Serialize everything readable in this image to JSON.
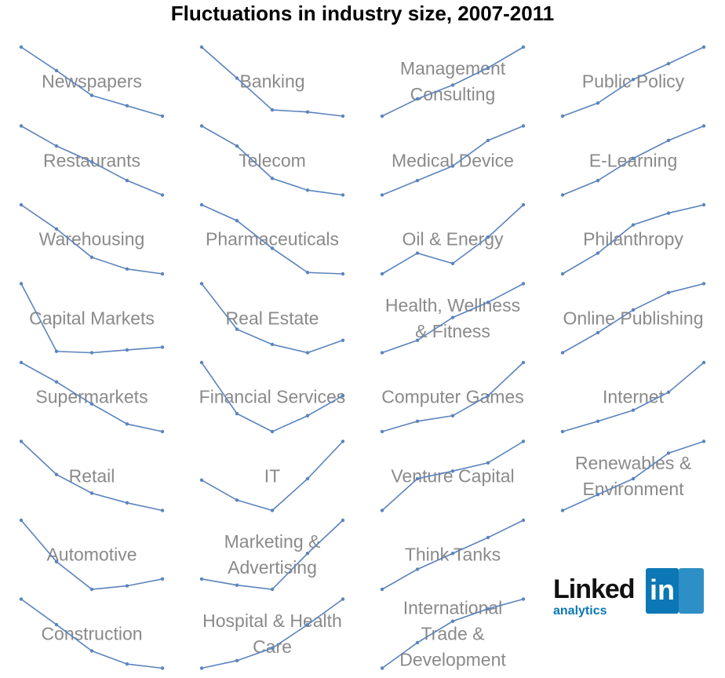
{
  "chart_data": {
    "type": "sparklines",
    "title": "Fluctuations in industry size, 2007-2011",
    "color": "#5b84bd",
    "ylim": [
      0,
      100
    ],
    "series": [
      {
        "name": "Newspapers",
        "values": [
          100,
          66,
          30,
          15,
          0
        ]
      },
      {
        "name": "Restaurants",
        "values": [
          100,
          71,
          48,
          21,
          0
        ]
      },
      {
        "name": "Warehousing",
        "values": [
          100,
          65,
          24,
          7,
          0
        ]
      },
      {
        "name": "Capital Markets",
        "values": [
          100,
          2,
          0,
          4,
          8
        ]
      },
      {
        "name": "Supermarkets",
        "values": [
          100,
          72,
          40,
          11,
          0
        ]
      },
      {
        "name": "Retail",
        "values": [
          100,
          52,
          25,
          11,
          0
        ]
      },
      {
        "name": "Automotive",
        "values": [
          100,
          40,
          0,
          5,
          15
        ]
      },
      {
        "name": "Construction",
        "values": [
          100,
          63,
          25,
          6,
          0
        ]
      },
      {
        "name": "Banking",
        "values": [
          100,
          55,
          9,
          6,
          0
        ]
      },
      {
        "name": "Telecom",
        "values": [
          100,
          71,
          24,
          7,
          0
        ]
      },
      {
        "name": "Pharmaceuticals",
        "values": [
          100,
          77,
          37,
          2,
          0
        ]
      },
      {
        "name": "Real Estate",
        "values": [
          100,
          34,
          12,
          0,
          18
        ]
      },
      {
        "name": "Financial Services",
        "values": [
          100,
          26,
          0,
          23,
          52
        ]
      },
      {
        "name": "IT",
        "values": [
          44,
          15,
          0,
          46,
          100
        ]
      },
      {
        "name": "Marketing &\nAdvertising",
        "values": [
          15,
          6,
          0,
          52,
          100
        ]
      },
      {
        "name": "Hospital & Health\nCare",
        "values": [
          0,
          11,
          29,
          63,
          100
        ]
      },
      {
        "name": "Management\nConsulting",
        "values": [
          0,
          25,
          45,
          70,
          100
        ]
      },
      {
        "name": "Medical Device",
        "values": [
          0,
          21,
          42,
          79,
          100
        ]
      },
      {
        "name": "Oil & Energy",
        "values": [
          0,
          30,
          15,
          53,
          100
        ]
      },
      {
        "name": "Health, Wellness\n& Fitness",
        "values": [
          0,
          18,
          51,
          73,
          100
        ]
      },
      {
        "name": "Computer Games",
        "values": [
          0,
          15,
          23,
          52,
          100
        ]
      },
      {
        "name": "Venture Capital",
        "values": [
          0,
          46,
          57,
          69,
          100
        ]
      },
      {
        "name": "Think Tanks",
        "values": [
          0,
          29,
          52,
          75,
          100
        ]
      },
      {
        "name": "International\nTrade &\nDevelopment",
        "values": [
          0,
          37,
          68,
          86,
          100
        ]
      },
      {
        "name": "Public Policy",
        "values": [
          0,
          19,
          53,
          76,
          100
        ]
      },
      {
        "name": "E-Learning",
        "values": [
          0,
          21,
          53,
          79,
          100
        ]
      },
      {
        "name": "Philanthropy",
        "values": [
          0,
          30,
          71,
          88,
          100
        ]
      },
      {
        "name": "Online Publishing",
        "values": [
          0,
          29,
          62,
          87,
          100
        ]
      },
      {
        "name": "Internet",
        "values": [
          0,
          15,
          31,
          57,
          100
        ]
      },
      {
        "name": "Renewables &\nEnvironment",
        "values": [
          0,
          23,
          46,
          83,
          100
        ]
      }
    ]
  },
  "logo": {
    "word": "Linked",
    "badge": "in",
    "sub": "analytics"
  }
}
